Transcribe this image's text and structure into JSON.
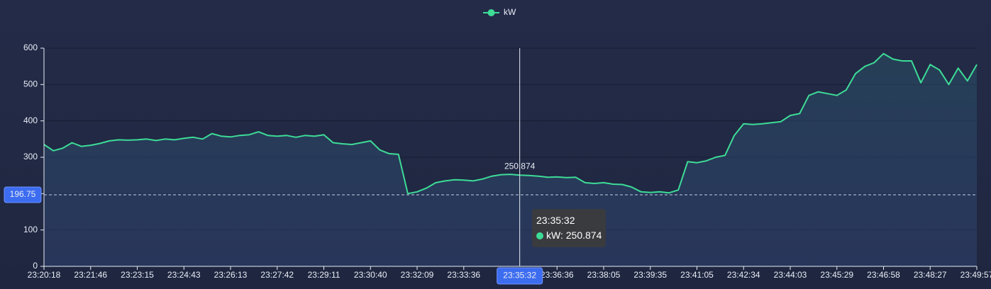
{
  "chart_data": {
    "type": "line",
    "categories": [
      "23:20:18",
      null,
      null,
      null,
      null,
      "23:21:46",
      null,
      null,
      null,
      null,
      "23:23:15",
      null,
      null,
      null,
      null,
      "23:24:43",
      null,
      null,
      null,
      null,
      "23:26:13",
      null,
      null,
      null,
      null,
      "23:27:42",
      null,
      null,
      null,
      null,
      "23:29:11",
      null,
      null,
      null,
      null,
      "23:30:40",
      null,
      null,
      null,
      null,
      "23:32:09",
      null,
      null,
      null,
      null,
      "23:33:36",
      null,
      null,
      null,
      null,
      null,
      "23:35:32",
      null,
      null,
      null,
      "23:36:36",
      null,
      null,
      null,
      null,
      "23:38:05",
      null,
      null,
      null,
      null,
      "23:39:35",
      null,
      null,
      null,
      null,
      "23:41:05",
      null,
      null,
      null,
      null,
      "23:42:34",
      null,
      null,
      null,
      null,
      "23:44:03",
      null,
      null,
      null,
      null,
      "23:45:29",
      null,
      null,
      null,
      null,
      "23:46:58",
      null,
      null,
      null,
      null,
      "23:48:27",
      null,
      null,
      null,
      null,
      "23:49:57"
    ],
    "series": [
      {
        "name": "kW",
        "color": "#3ddc97",
        "values": [
          335,
          318,
          325,
          340,
          330,
          333,
          338,
          345,
          348,
          347,
          348,
          350,
          346,
          350,
          348,
          352,
          355,
          350,
          365,
          358,
          356,
          360,
          362,
          370,
          360,
          358,
          360,
          355,
          360,
          358,
          362,
          340,
          337,
          335,
          340,
          345,
          320,
          310,
          308,
          200,
          205,
          215,
          230,
          235,
          238,
          237,
          235,
          240,
          248,
          252,
          253,
          250.874,
          250,
          248,
          245,
          246,
          244,
          245,
          230,
          228,
          230,
          226,
          225,
          218,
          205,
          203,
          205,
          202,
          210,
          288,
          285,
          290,
          300,
          305,
          360,
          392,
          390,
          392,
          395,
          398,
          415,
          420,
          470,
          480,
          475,
          470,
          485,
          530,
          550,
          560,
          585,
          570,
          565,
          565,
          505,
          555,
          540,
          500,
          545,
          510,
          555
        ]
      }
    ],
    "ylim": [
      0,
      600
    ],
    "yticks": [
      0,
      100,
      200,
      300,
      400,
      500,
      600
    ],
    "grid": true,
    "mark_line": {
      "value": 196.75
    },
    "axis_pointer": {
      "index": 51
    },
    "legend": "top"
  }
}
